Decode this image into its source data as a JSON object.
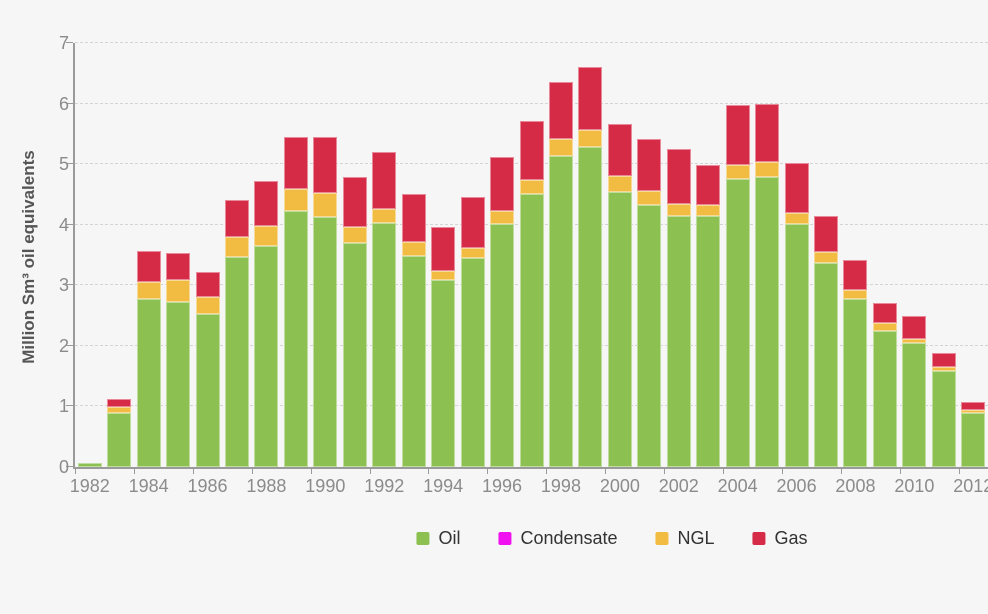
{
  "axis": {
    "y_title": "Million Sm³ oil equivalents",
    "y_ticks": [
      "0",
      "1",
      "2",
      "3",
      "4",
      "5",
      "6",
      "7"
    ],
    "x_tick_labels": [
      "1982",
      "1984",
      "1986",
      "1988",
      "1990",
      "1992",
      "1994",
      "1996",
      "1998",
      "2000",
      "2002",
      "2004",
      "2006",
      "2008",
      "2010",
      "2012"
    ]
  },
  "legend": {
    "items": [
      {
        "label": "Oil",
        "color": "#8cc152"
      },
      {
        "label": "Condensate",
        "color": "#f010f0"
      },
      {
        "label": "NGL",
        "color": "#f2bc43"
      },
      {
        "label": "Gas",
        "color": "#d52b46"
      }
    ]
  },
  "chart_data": {
    "type": "bar",
    "stacked": true,
    "title": "",
    "xlabel": "",
    "ylabel": "Million Sm³ oil equivalents",
    "ylim": [
      0,
      7
    ],
    "grid": "horizontal-dashed",
    "legend_position": "bottom",
    "categories": [
      1982,
      1983,
      1984,
      1985,
      1986,
      1987,
      1988,
      1989,
      1990,
      1991,
      1992,
      1993,
      1994,
      1995,
      1996,
      1997,
      1998,
      1999,
      2000,
      2001,
      2002,
      2003,
      2004,
      2005,
      2006,
      2007,
      2008,
      2009,
      2010,
      2011,
      2012
    ],
    "series": [
      {
        "name": "Oil",
        "color": "#8cc152",
        "values": [
          0.06,
          0.9,
          2.78,
          2.73,
          2.53,
          3.47,
          3.65,
          4.23,
          4.13,
          3.7,
          4.03,
          3.49,
          3.09,
          3.45,
          4.02,
          4.51,
          5.14,
          5.29,
          4.54,
          4.33,
          4.15,
          4.14,
          4.76,
          4.79,
          4.01,
          3.37,
          2.77,
          2.24,
          2.04,
          1.59,
          0.9
        ]
      },
      {
        "name": "Condensate",
        "color": "#f010f0",
        "values": [
          0,
          0,
          0,
          0,
          0,
          0,
          0,
          0,
          0,
          0,
          0,
          0,
          0,
          0,
          0,
          0,
          0,
          0,
          0,
          0,
          0,
          0,
          0,
          0,
          0,
          0,
          0,
          0,
          0,
          0,
          0
        ]
      },
      {
        "name": "NGL",
        "color": "#f2bc43",
        "values": [
          0,
          0.09,
          0.27,
          0.35,
          0.27,
          0.32,
          0.33,
          0.36,
          0.4,
          0.27,
          0.23,
          0.22,
          0.15,
          0.16,
          0.21,
          0.23,
          0.28,
          0.27,
          0.27,
          0.23,
          0.2,
          0.18,
          0.23,
          0.24,
          0.19,
          0.18,
          0.15,
          0.13,
          0.08,
          0.06,
          0.04
        ]
      },
      {
        "name": "Gas",
        "color": "#d52b46",
        "values": [
          0,
          0.13,
          0.52,
          0.45,
          0.42,
          0.62,
          0.74,
          0.86,
          0.92,
          0.82,
          0.94,
          0.8,
          0.72,
          0.84,
          0.89,
          0.98,
          0.94,
          1.04,
          0.86,
          0.86,
          0.9,
          0.66,
          0.98,
          0.97,
          0.82,
          0.6,
          0.5,
          0.33,
          0.37,
          0.24,
          0.14
        ]
      }
    ]
  }
}
